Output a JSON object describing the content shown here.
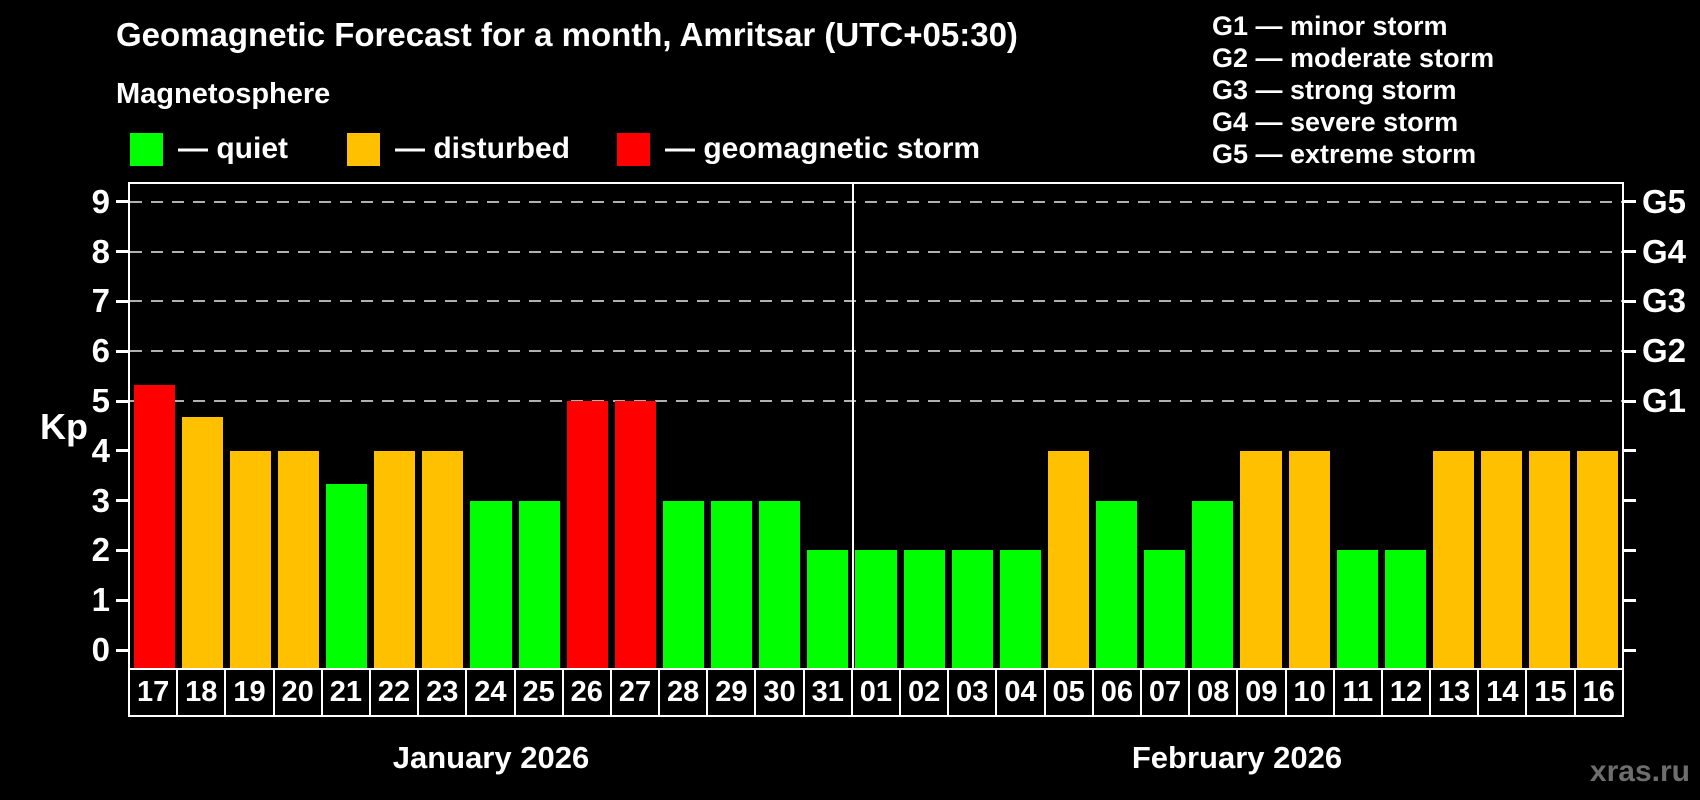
{
  "title": "Geomagnetic Forecast for a month, Amritsar (UTC+05:30)",
  "subtitle": "Magnetosphere",
  "legend": {
    "items": [
      {
        "key": "quiet",
        "label": "— quiet"
      },
      {
        "key": "disturbed",
        "label": "— disturbed"
      },
      {
        "key": "storm",
        "label": "— geomagnetic storm"
      }
    ]
  },
  "g_scale_legend": [
    "G1 — minor storm",
    "G2 — moderate storm",
    "G3 — strong storm",
    "G4 — severe storm",
    "G5 — extreme storm"
  ],
  "colors": {
    "status": {
      "quiet": "#00ff00",
      "disturbed": "#ffc000",
      "storm": "#ff0000"
    },
    "background": "#000000",
    "text": "#ffffff",
    "gridline": "#b0b0b0",
    "watermark": "#6e6e6e"
  },
  "watermark": "xras.ru",
  "chart_data": {
    "type": "bar",
    "title": "Geomagnetic Forecast for a month, Amritsar (UTC+05:30)",
    "ylabel": "Kp",
    "ylim": [
      0,
      9
    ],
    "yticks": [
      0,
      1,
      2,
      3,
      4,
      5,
      6,
      7,
      8,
      9
    ],
    "gridlines": [
      5,
      6,
      7,
      8,
      9
    ],
    "grid": "horizontal dashed at Kp 5..9",
    "legend_position": "top-left",
    "right_axis": [
      {
        "value": 5,
        "label": "G1"
      },
      {
        "value": 6,
        "label": "G2"
      },
      {
        "value": 7,
        "label": "G3"
      },
      {
        "value": 8,
        "label": "G4"
      },
      {
        "value": 9,
        "label": "G5"
      }
    ],
    "months": [
      {
        "label": "January 2026",
        "bars": [
          {
            "day": "17",
            "kp": 5.33,
            "status": "storm"
          },
          {
            "day": "18",
            "kp": 4.67,
            "status": "disturbed"
          },
          {
            "day": "19",
            "kp": 4,
            "status": "disturbed"
          },
          {
            "day": "20",
            "kp": 4,
            "status": "disturbed"
          },
          {
            "day": "21",
            "kp": 3.33,
            "status": "quiet"
          },
          {
            "day": "22",
            "kp": 4,
            "status": "disturbed"
          },
          {
            "day": "23",
            "kp": 4,
            "status": "disturbed"
          },
          {
            "day": "24",
            "kp": 3,
            "status": "quiet"
          },
          {
            "day": "25",
            "kp": 3,
            "status": "quiet"
          },
          {
            "day": "26",
            "kp": 5,
            "status": "storm"
          },
          {
            "day": "27",
            "kp": 5,
            "status": "storm"
          },
          {
            "day": "28",
            "kp": 3,
            "status": "quiet"
          },
          {
            "day": "29",
            "kp": 3,
            "status": "quiet"
          },
          {
            "day": "30",
            "kp": 3,
            "status": "quiet"
          },
          {
            "day": "31",
            "kp": 2,
            "status": "quiet"
          }
        ]
      },
      {
        "label": "February 2026",
        "bars": [
          {
            "day": "01",
            "kp": 2,
            "status": "quiet"
          },
          {
            "day": "02",
            "kp": 2,
            "status": "quiet"
          },
          {
            "day": "03",
            "kp": 2,
            "status": "quiet"
          },
          {
            "day": "04",
            "kp": 2,
            "status": "quiet"
          },
          {
            "day": "05",
            "kp": 4,
            "status": "disturbed"
          },
          {
            "day": "06",
            "kp": 3,
            "status": "quiet"
          },
          {
            "day": "07",
            "kp": 2,
            "status": "quiet"
          },
          {
            "day": "08",
            "kp": 3,
            "status": "quiet"
          },
          {
            "day": "09",
            "kp": 4,
            "status": "disturbed"
          },
          {
            "day": "10",
            "kp": 4,
            "status": "disturbed"
          },
          {
            "day": "11",
            "kp": 2,
            "status": "quiet"
          },
          {
            "day": "12",
            "kp": 2,
            "status": "quiet"
          },
          {
            "day": "13",
            "kp": 4,
            "status": "disturbed"
          },
          {
            "day": "14",
            "kp": 4,
            "status": "disturbed"
          },
          {
            "day": "15",
            "kp": 4,
            "status": "disturbed"
          },
          {
            "day": "16",
            "kp": 4,
            "status": "disturbed"
          }
        ]
      }
    ]
  }
}
